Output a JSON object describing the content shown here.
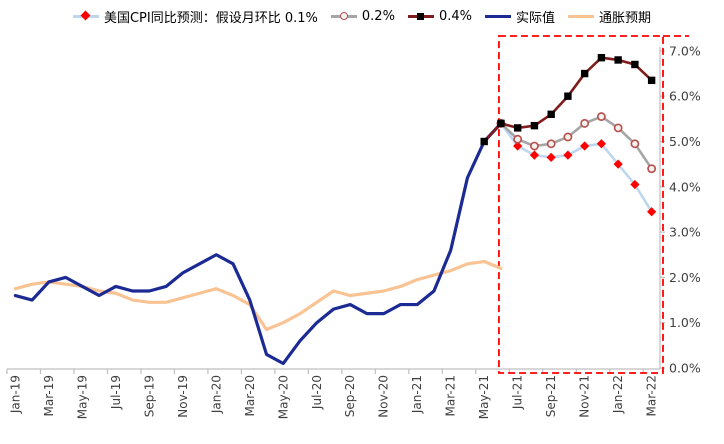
{
  "chart_data": {
    "type": "line",
    "title": "",
    "categories": [
      "Jan-19",
      "Feb-19",
      "Mar-19",
      "Apr-19",
      "May-19",
      "Jun-19",
      "Jul-19",
      "Aug-19",
      "Sep-19",
      "Oct-19",
      "Nov-19",
      "Dec-19",
      "Jan-20",
      "Feb-20",
      "Mar-20",
      "Apr-20",
      "May-20",
      "Jun-20",
      "Jul-20",
      "Aug-20",
      "Sep-20",
      "Oct-20",
      "Nov-20",
      "Dec-20",
      "Jan-21",
      "Feb-21",
      "Mar-21",
      "Apr-21",
      "May-21",
      "Jun-21",
      "Jul-21",
      "Aug-21",
      "Sep-21",
      "Oct-21",
      "Nov-21",
      "Dec-21",
      "Jan-22",
      "Feb-22",
      "Mar-22"
    ],
    "x_tick_labels": [
      "Jan-19",
      "Mar-19",
      "May-19",
      "Jul-19",
      "Sep-19",
      "Nov-19",
      "Jan-20",
      "Mar-20",
      "May-20",
      "Jul-20",
      "Sep-20",
      "Nov-20",
      "Jan-21",
      "Mar-21",
      "May-21",
      "Jul-21",
      "Sep-21",
      "Nov-21",
      "Jan-22",
      "Mar-22"
    ],
    "y_ticks": [
      "0.0%",
      "1.0%",
      "2.0%",
      "3.0%",
      "4.0%",
      "5.0%",
      "6.0%",
      "7.0%"
    ],
    "ylim": [
      0,
      7
    ],
    "grid": false,
    "legend_position": "top",
    "series": [
      {
        "name": "美国CPI同比预测：假设月环比 0.1%",
        "line_color": "#bdd7ee",
        "marker": "diamond",
        "marker_color": "#fe0000",
        "start_index": 29,
        "values": [
          5.4,
          4.9,
          4.7,
          4.65,
          4.7,
          4.9,
          4.95,
          4.5,
          4.05,
          3.45
        ]
      },
      {
        "name": "0.2%",
        "line_color": "#a6a6a6",
        "marker": "circle",
        "marker_color": "#b85450",
        "marker_fill": "#f5f3f2",
        "start_index": 29,
        "values": [
          5.4,
          5.05,
          4.9,
          4.95,
          5.1,
          5.4,
          5.55,
          5.3,
          4.95,
          4.4
        ]
      },
      {
        "name": "0.4%",
        "line_color": "#7f1d1d",
        "marker": "square",
        "marker_color": "#000000",
        "start_index": 28,
        "values": [
          5.0,
          5.4,
          5.3,
          5.35,
          5.6,
          6.0,
          6.5,
          6.85,
          6.8,
          6.7,
          6.35
        ]
      },
      {
        "name": "实际值",
        "line_color": "#1c2b94",
        "marker": "none",
        "start_index": 0,
        "values": [
          1.6,
          1.5,
          1.9,
          2.0,
          1.8,
          1.6,
          1.8,
          1.7,
          1.7,
          1.8,
          2.1,
          2.3,
          2.5,
          2.3,
          1.5,
          0.3,
          0.1,
          0.6,
          1.0,
          1.3,
          1.4,
          1.2,
          1.2,
          1.4,
          1.4,
          1.7,
          2.6,
          4.2,
          5.0,
          5.4
        ]
      },
      {
        "name": "通胀预期",
        "line_color": "#f9c394",
        "marker": "none",
        "start_index": 0,
        "values": [
          1.75,
          1.85,
          1.9,
          1.85,
          1.8,
          1.7,
          1.65,
          1.5,
          1.45,
          1.45,
          1.55,
          1.65,
          1.75,
          1.6,
          1.4,
          0.85,
          1.0,
          1.2,
          1.45,
          1.7,
          1.6,
          1.65,
          1.7,
          1.8,
          1.95,
          2.05,
          2.15,
          2.3,
          2.35,
          2.2
        ]
      }
    ],
    "annotation_box": {
      "start_category": "Jun-21",
      "start_index": 29,
      "color": "#ff0000",
      "style": "dashed"
    }
  },
  "axis_colors": {
    "line": "#bfbfbf",
    "label": "#404040"
  }
}
